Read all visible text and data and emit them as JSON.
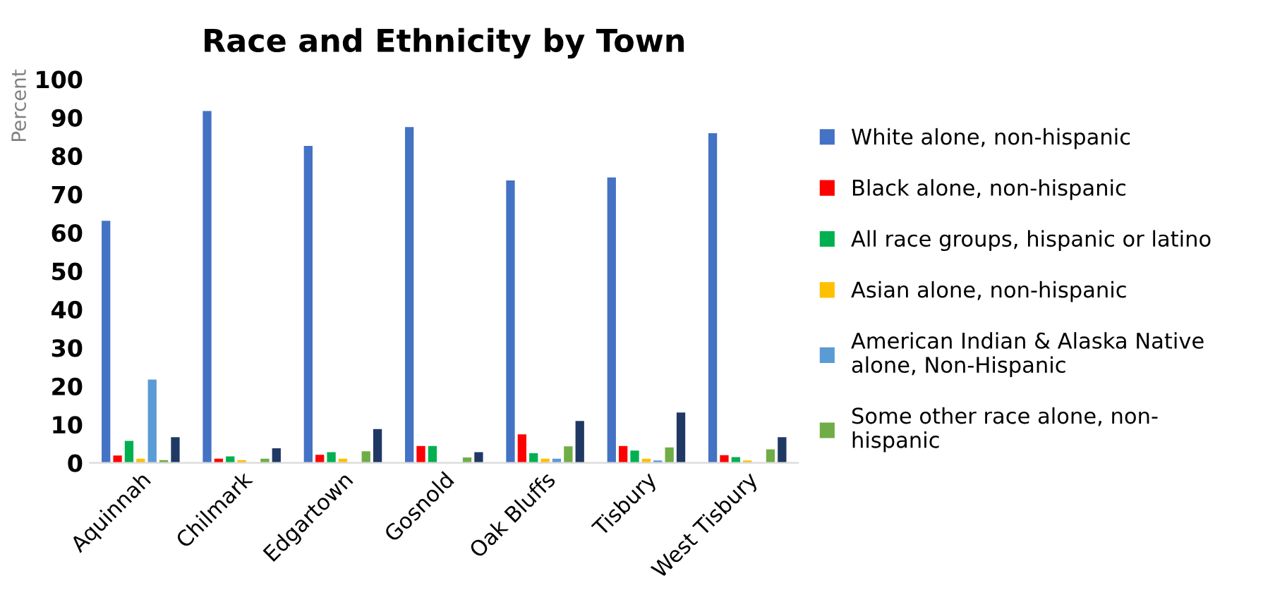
{
  "chart_data": {
    "type": "bar",
    "title": "Race and Ethnicity by Town",
    "ylabel": "Percent",
    "categories": [
      "Aquinnah",
      "Chilmark",
      "Edgartown",
      "Gosnold",
      "Oak Bluffs",
      "Tisbury",
      "West Tisbury"
    ],
    "series": [
      {
        "name": "White alone, non-hispanic",
        "color": "#4472c4",
        "values": [
          63.1,
          91.7,
          82.6,
          87.5,
          73.6,
          74.4,
          85.9
        ]
      },
      {
        "name": "Black alone, non-hispanic",
        "color": "#ff0000",
        "values": [
          1.9,
          1.1,
          2.1,
          4.4,
          7.4,
          4.4,
          2.0
        ]
      },
      {
        "name": "All race groups, hispanic or latino",
        "color": "#00b050",
        "values": [
          5.7,
          1.7,
          2.8,
          4.4,
          2.5,
          3.2,
          1.5
        ]
      },
      {
        "name": "Asian alone, non-hispanic",
        "color": "#ffc000",
        "values": [
          1.1,
          0.7,
          1.1,
          0,
          1.1,
          1.1,
          0.6
        ]
      },
      {
        "name": "American Indian & Alaska Native\nalone, Non-Hispanic",
        "color": "#5b9bd5",
        "values": [
          21.7,
          0,
          0,
          0,
          1.1,
          0.6,
          0
        ]
      },
      {
        "name": "Some other race alone, non-\nhispanic",
        "color": "#70ad47",
        "values": [
          0.7,
          1.1,
          3.0,
          1.4,
          4.3,
          4.0,
          3.5
        ]
      },
      {
        "color": "#203864",
        "values": [
          6.7,
          3.8,
          8.8,
          2.8,
          10.9,
          13.1,
          6.7
        ]
      }
    ],
    "ylim": [
      0,
      100
    ],
    "yticks": [
      0,
      10,
      20,
      30,
      40,
      50,
      60,
      70,
      80,
      90,
      100
    ],
    "grid": false,
    "legend": "right"
  }
}
